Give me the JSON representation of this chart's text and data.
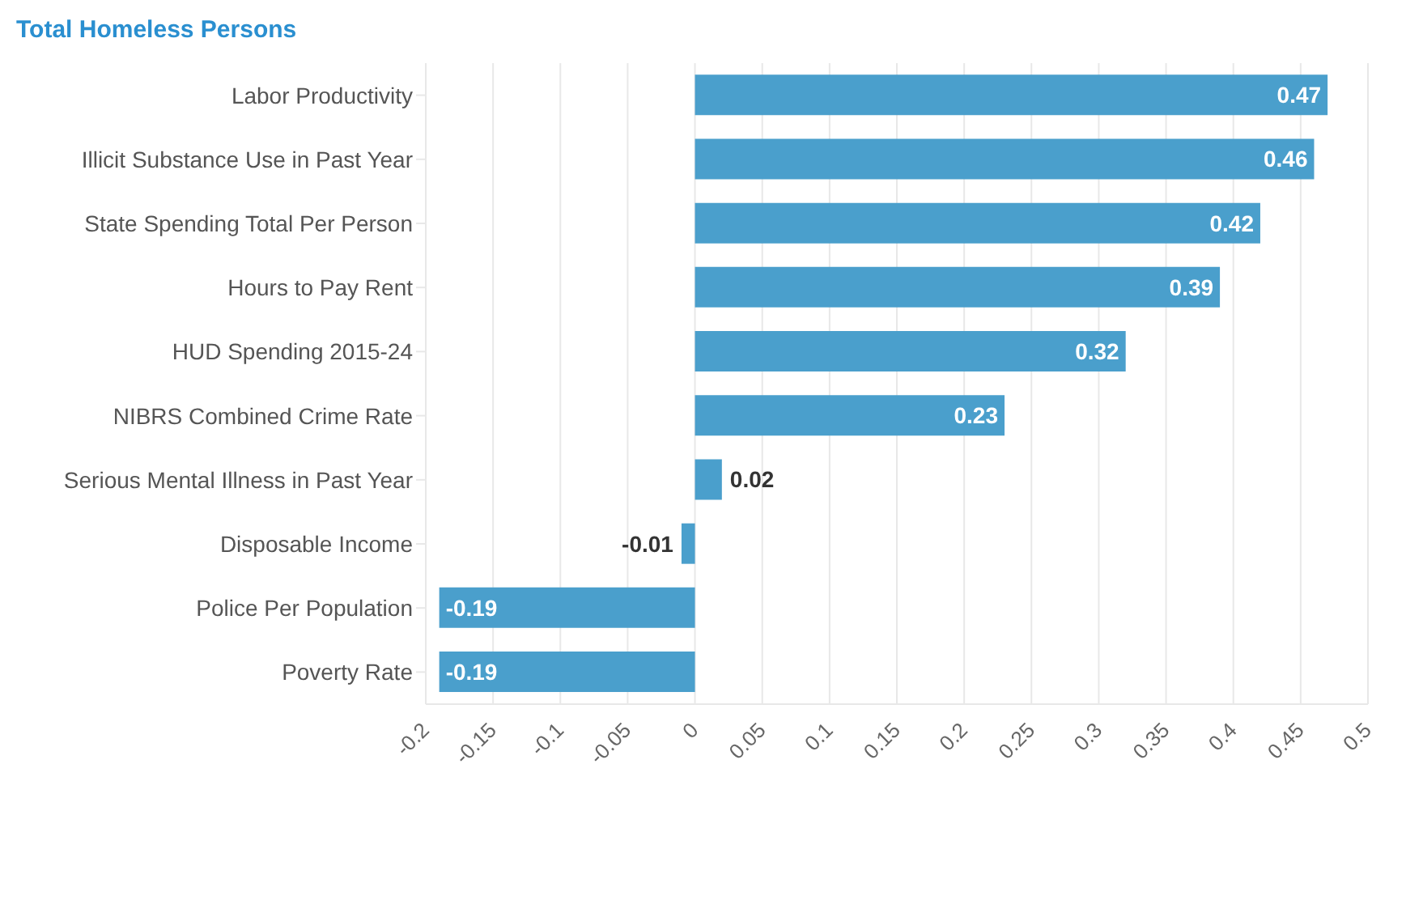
{
  "chart_data": {
    "type": "bar",
    "orientation": "horizontal",
    "title": "Total Homeless Persons",
    "categories": [
      "Labor Productivity",
      "Illicit Substance Use in Past Year",
      "State Spending Total Per Person",
      "Hours to Pay Rent",
      "HUD Spending 2015-24",
      "NIBRS Combined Crime Rate",
      "Serious Mental Illness in Past Year",
      "Disposable Income",
      "Police Per Population",
      "Poverty Rate"
    ],
    "values": [
      0.47,
      0.46,
      0.42,
      0.39,
      0.32,
      0.23,
      0.02,
      -0.01,
      -0.19,
      -0.19
    ],
    "color": "#4a9fcc",
    "xlim": [
      -0.2,
      0.5
    ],
    "xticks": [
      -0.2,
      -0.15,
      -0.1,
      -0.05,
      0,
      0.05,
      0.1,
      0.15,
      0.2,
      0.25,
      0.3,
      0.35,
      0.4,
      0.45,
      0.5
    ],
    "grid": "x",
    "data_labels": true,
    "legend": false
  }
}
